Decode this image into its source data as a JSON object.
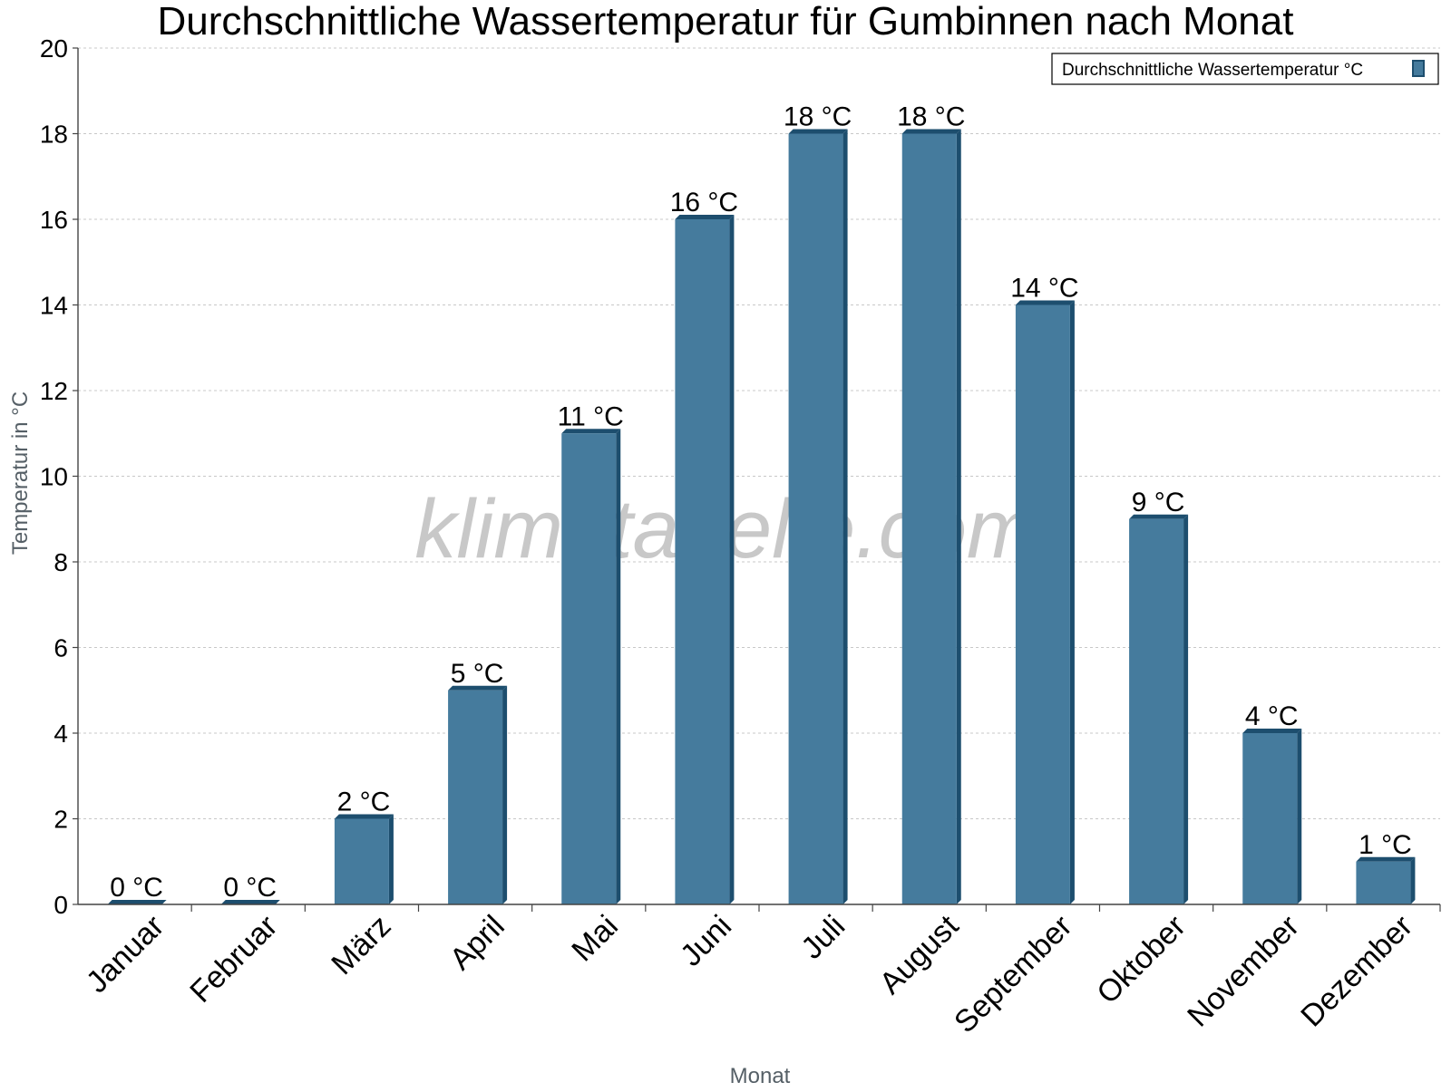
{
  "chart_data": {
    "type": "bar",
    "title": "Durchschnittliche Wassertemperatur für Gumbinnen nach Monat",
    "xlabel": "Monat",
    "ylabel": "Temperatur in °C",
    "categories": [
      "Januar",
      "Februar",
      "März",
      "April",
      "Mai",
      "Juni",
      "Juli",
      "August",
      "September",
      "Oktober",
      "November",
      "Dezember"
    ],
    "series": [
      {
        "name": "Durchschnittliche Wassertemperatur °C",
        "values": [
          0,
          0,
          2,
          5,
          11,
          16,
          18,
          18,
          14,
          9,
          4,
          1
        ],
        "labels": [
          "0 °C",
          "0 °C",
          "2 °C",
          "5 °C",
          "11 °C",
          "16 °C",
          "18 °C",
          "18 °C",
          "14 °C",
          "9 °C",
          "4 °C",
          "1 °C"
        ],
        "color": "#457b9d",
        "edge_color": "#1d4e6e"
      }
    ],
    "ylim": [
      0,
      20
    ],
    "yticks": [
      0,
      2,
      4,
      6,
      8,
      10,
      12,
      14,
      16,
      18,
      20
    ],
    "grid": true,
    "legend_position": "top-right",
    "watermark": "klimatabelle.com"
  }
}
